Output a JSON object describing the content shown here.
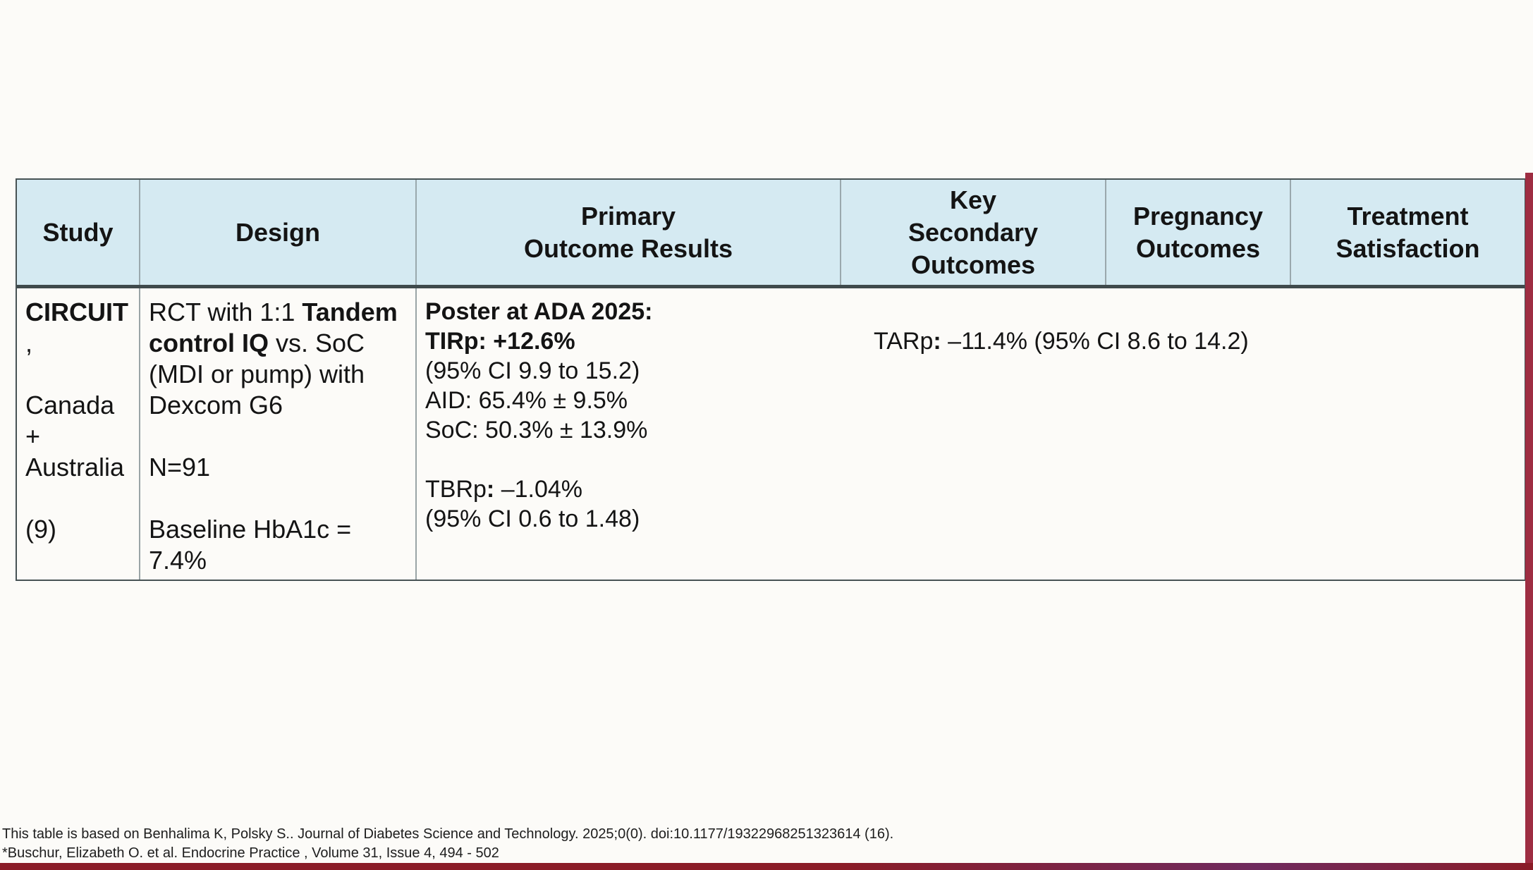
{
  "slide": {
    "background": "#fcfbf8",
    "accents": {
      "right_strip_color": "#9e2d42",
      "bottom_bar_left_color": "#8a1c27",
      "bottom_bar_right_color": "#6f2a5e"
    },
    "table": {
      "header_bg": "#d5eaf2",
      "headers": [
        {
          "id": "study",
          "label": "Study"
        },
        {
          "id": "design",
          "label": "Design"
        },
        {
          "id": "primary",
          "label": "Primary\nOutcome Results"
        },
        {
          "id": "secondary",
          "label": "Key\nSecondary\nOutcomes"
        },
        {
          "id": "pregnancy",
          "label": "Pregnancy\nOutcomes"
        },
        {
          "id": "satisfaction",
          "label": "Treatment\nSatisfaction"
        }
      ],
      "row": {
        "study_lines": [
          [
            {
              "t": "CIRCUIT",
              "b": true
            }
          ],
          [
            {
              "t": ","
            }
          ],
          [],
          [
            {
              "t": "Canada"
            }
          ],
          [
            {
              "t": "+"
            }
          ],
          [
            {
              "t": "Australia"
            }
          ],
          [],
          [
            {
              "t": "(9)"
            }
          ]
        ],
        "design_lines": [
          [
            {
              "t": "RCT with 1:1 "
            },
            {
              "t": "Tandem",
              "b": true
            }
          ],
          [
            {
              "t": "control IQ",
              "b": true
            },
            {
              "t": " vs. SoC"
            }
          ],
          [
            {
              "t": "(MDI or pump) with"
            }
          ],
          [
            {
              "t": "Dexcom G6"
            }
          ],
          [],
          [
            {
              "t": "N=91"
            }
          ],
          [],
          [
            {
              "t": "Baseline HbA1c ="
            }
          ],
          [
            {
              "t": "7.4%"
            }
          ]
        ],
        "primary_lines": [
          [
            {
              "t": "Poster at ADA 2025:",
              "b": true
            }
          ],
          [
            {
              "t": "TIRp: +12.6%",
              "b": true
            }
          ],
          [
            {
              "t": "(95% CI 9.9 to 15.2)"
            }
          ],
          [
            {
              "t": "AID: 65.4% ± 9.5%"
            }
          ],
          [
            {
              "t": "SoC: 50.3% ± 13.9%"
            }
          ],
          [],
          [
            {
              "t": "TBRp"
            },
            {
              "t": ":",
              "b": true
            },
            {
              "t": " –1.04%"
            }
          ],
          [
            {
              "t": "(95% CI 0.6 to 1.48)"
            }
          ]
        ],
        "secondary_lines": [
          [],
          [
            {
              "t": "TARp"
            },
            {
              "t": ":",
              "b": true
            },
            {
              "t": " –11.4% (95% CI 8.6 to 14.2)"
            }
          ]
        ]
      }
    },
    "footnotes": [
      "This table is based on Benhalima K, Polsky S.. Journal of Diabetes Science and Technology. 2025;0(0). doi:10.1177/19322968251323614 (16).",
      "*Buschur, Elizabeth O. et al. Endocrine Practice , Volume 31, Issue 4, 494 - 502"
    ]
  }
}
